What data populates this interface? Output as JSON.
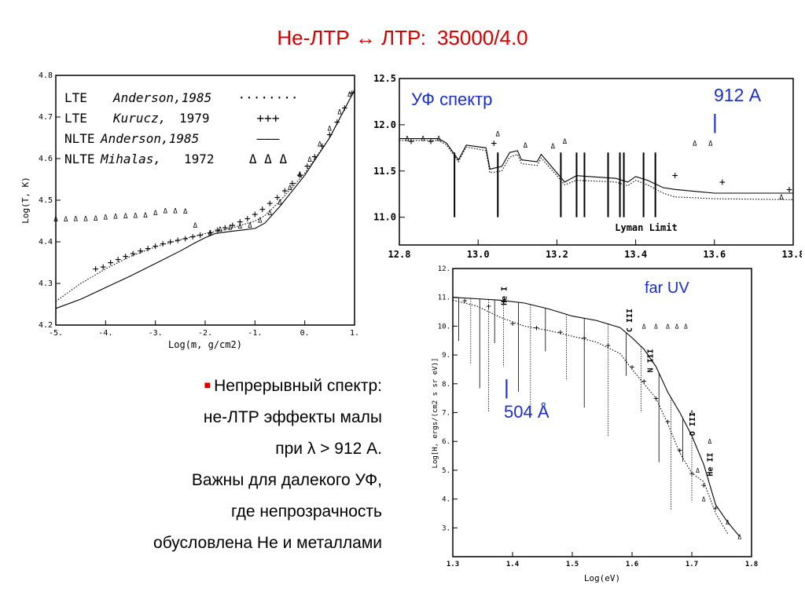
{
  "title": {
    "part1": "He-ЛТР",
    "arrow": "↔",
    "part2": "ЛТР:",
    "part3": "35000/4.0"
  },
  "bullet": {
    "lines": [
      "Непрерывный спектр:",
      "не-ЛТР эффекты малы",
      "при λ > 912 А.",
      "Важны для далекого УФ,",
      "где непрозрачность",
      "обусловлена He и металлами"
    ]
  },
  "colors": {
    "title": "#d40000",
    "annotation": "#1a2fcc",
    "bullet": "#d40000"
  },
  "chart_data": [
    {
      "type": "line",
      "xlabel": "Log(m, g/cm2)",
      "ylabel": "Log(T, K)",
      "xlim": [
        -5,
        1
      ],
      "ylim": [
        4.2,
        4.8
      ],
      "xticks": [
        "-5.",
        "-4.",
        "-3.",
        "-2.",
        "-1.",
        "0.",
        "1."
      ],
      "yticks": [
        "4.2",
        "4.3",
        "4.4",
        "4.5",
        "4.6",
        "4.7",
        "4.8"
      ],
      "legend": [
        {
          "label": "LTE",
          "ref": "Anderson,1985",
          "year": "",
          "marker": "········"
        },
        {
          "label": "LTE",
          "ref": "Kurucz,",
          "year": "1979",
          "marker": "+++"
        },
        {
          "label": "NLTE",
          "ref": "Anderson,1985",
          "year": "",
          "marker": "———"
        },
        {
          "label": "NLTE",
          "ref": "Mihalas,",
          "year": "1972",
          "marker": "Δ Δ Δ"
        }
      ],
      "series": [
        {
          "style": "dotted",
          "x": [
            -5.0,
            -4.5,
            -4.0,
            -3.5,
            -3.0,
            -2.5,
            -2.2,
            -2.0,
            -1.5,
            -1.0,
            -0.8,
            -0.5,
            0.0,
            0.5,
            1.0
          ],
          "y": [
            4.257,
            4.3,
            4.335,
            4.365,
            4.388,
            4.405,
            4.414,
            4.42,
            4.432,
            4.45,
            4.463,
            4.498,
            4.565,
            4.65,
            4.765
          ]
        },
        {
          "style": "solid",
          "x": [
            -5.0,
            -4.5,
            -4.0,
            -3.5,
            -3.0,
            -2.5,
            -2.2,
            -2.0,
            -1.8,
            -1.5,
            -1.2,
            -1.0,
            -0.8,
            -0.5,
            0.0,
            0.5,
            1.0
          ],
          "y": [
            4.24,
            4.262,
            4.29,
            4.318,
            4.348,
            4.378,
            4.398,
            4.41,
            4.42,
            4.425,
            4.429,
            4.432,
            4.445,
            4.485,
            4.56,
            4.65,
            4.765
          ]
        },
        {
          "style": "plus",
          "x": [
            -4.2,
            -4.05,
            -3.9,
            -3.75,
            -3.6,
            -3.45,
            -3.3,
            -3.15,
            -3.0,
            -2.85,
            -2.7,
            -2.55,
            -2.4,
            -2.25,
            -2.1,
            -1.9,
            -1.75,
            -1.6,
            -1.45,
            -1.3,
            -1.15,
            -1.0,
            -0.85,
            -0.7,
            -0.55,
            -0.4,
            -0.25,
            -0.1,
            0.05,
            0.2,
            0.35,
            0.5,
            0.65,
            0.8,
            0.95
          ],
          "y": [
            4.335,
            4.34,
            4.35,
            4.358,
            4.365,
            4.372,
            4.378,
            4.384,
            4.39,
            4.395,
            4.4,
            4.404,
            4.408,
            4.412,
            4.416,
            4.422,
            4.428,
            4.434,
            4.44,
            4.448,
            4.456,
            4.466,
            4.478,
            4.492,
            4.507,
            4.523,
            4.541,
            4.56,
            4.582,
            4.605,
            4.63,
            4.658,
            4.688,
            4.722,
            4.758
          ]
        },
        {
          "style": "triangle",
          "x": [
            -5.0,
            -4.8,
            -4.6,
            -4.4,
            -4.2,
            -4.0,
            -3.8,
            -3.6,
            -3.4,
            -3.2,
            -3.0,
            -2.8,
            -2.6,
            -2.4,
            -2.2,
            -1.9,
            -1.7,
            -1.5,
            -1.3,
            -1.1,
            -0.9,
            -0.7,
            -0.5,
            -0.3,
            -0.1,
            0.1,
            0.3,
            0.5,
            0.7,
            0.9
          ],
          "y": [
            4.455,
            4.455,
            4.456,
            4.456,
            4.457,
            4.459,
            4.461,
            4.462,
            4.463,
            4.464,
            4.47,
            4.475,
            4.475,
            4.474,
            4.44,
            4.422,
            4.43,
            4.435,
            4.438,
            4.44,
            4.452,
            4.47,
            4.495,
            4.53,
            4.562,
            4.598,
            4.635,
            4.673,
            4.712,
            4.755
          ]
        }
      ]
    },
    {
      "type": "line",
      "title": "УФ спектр",
      "annotation": "912 А",
      "annotation_bar": "|",
      "bottom_label": "Lyman Limit",
      "xlim": [
        12.8,
        13.8
      ],
      "ylim": [
        10.7,
        12.5
      ],
      "xticks": [
        "12.8",
        "13.0",
        "13.2",
        "13.4",
        "13.6",
        "13.8"
      ],
      "yticks": [
        "11.0",
        "11.5",
        "12.0",
        "12.5"
      ],
      "series": [
        {
          "style": "solid",
          "x": [
            12.8,
            12.9,
            12.92,
            12.95,
            12.97,
            13.02,
            13.03,
            13.06,
            13.08,
            13.1,
            13.11,
            13.15,
            13.16,
            13.2,
            13.22,
            13.25,
            13.35,
            13.38,
            13.4,
            13.43,
            13.47,
            13.5,
            13.55,
            13.6,
            13.8
          ],
          "y": [
            11.85,
            11.85,
            11.8,
            11.62,
            11.78,
            11.75,
            11.52,
            11.55,
            11.7,
            11.72,
            11.62,
            11.6,
            11.68,
            11.48,
            11.38,
            11.45,
            11.42,
            11.38,
            11.44,
            11.4,
            11.32,
            11.3,
            11.28,
            11.26,
            11.26
          ]
        },
        {
          "style": "dotted",
          "x": [
            12.8,
            12.9,
            12.92,
            12.95,
            12.97,
            13.02,
            13.03,
            13.06,
            13.08,
            13.1,
            13.11,
            13.15,
            13.16,
            13.2,
            13.22,
            13.25,
            13.35,
            13.38,
            13.4,
            13.43,
            13.47,
            13.5,
            13.55,
            13.6,
            13.8
          ],
          "y": [
            11.83,
            11.83,
            11.78,
            11.6,
            11.76,
            11.72,
            11.48,
            11.5,
            11.65,
            11.68,
            11.58,
            11.56,
            11.64,
            11.45,
            11.35,
            11.4,
            11.38,
            11.34,
            11.4,
            11.35,
            11.26,
            11.22,
            11.21,
            11.2,
            11.19
          ]
        },
        {
          "style": "plus",
          "x": [
            12.83,
            12.88,
            13.04,
            13.5,
            13.62,
            13.79
          ],
          "y": [
            11.82,
            11.82,
            11.8,
            11.45,
            11.38,
            11.3
          ]
        },
        {
          "style": "triangle",
          "x": [
            12.82,
            12.86,
            12.9,
            13.05,
            13.12,
            13.19,
            13.22,
            13.55,
            13.59,
            13.77
          ],
          "y": [
            11.85,
            11.85,
            11.85,
            11.9,
            11.78,
            11.77,
            11.82,
            11.8,
            11.8,
            11.22
          ]
        }
      ],
      "absorption_lines": [
        12.94,
        13.05,
        13.21,
        13.25,
        13.27,
        13.33,
        13.36,
        13.37,
        13.42,
        13.45
      ]
    },
    {
      "type": "line",
      "title": "far UV",
      "annotation": "504 Å",
      "annotation_bar": "|",
      "xlabel": "Log(eV)",
      "ylabel": "Log[H, ergs/(cm2 s sr eV)]",
      "xlim": [
        1.3,
        1.8
      ],
      "ylim": [
        2,
        12
      ],
      "xticks": [
        "1.3",
        "1.4",
        "1.5",
        "1.6",
        "1.7",
        "1.8"
      ],
      "yticks": [
        "3.",
        "4.",
        "5.",
        "6.",
        "7.",
        "8.",
        "9.",
        "10.",
        "11.",
        "12."
      ],
      "line_labels": [
        {
          "text": "He I",
          "x": 1.39,
          "y": 11.05
        },
        {
          "text": "C III",
          "x": 1.6,
          "y": 10.2
        },
        {
          "text": "N III",
          "x": 1.635,
          "y": 8.8
        },
        {
          "text": "O III",
          "x": 1.705,
          "y": 6.6
        },
        {
          "text": "He II",
          "x": 1.735,
          "y": 5.2
        }
      ],
      "series": [
        {
          "style": "solid",
          "x": [
            1.3,
            1.34,
            1.38,
            1.42,
            1.46,
            1.5,
            1.54,
            1.58,
            1.6,
            1.62,
            1.64,
            1.66,
            1.68,
            1.7,
            1.72,
            1.74,
            1.76,
            1.78
          ],
          "y": [
            11.0,
            10.95,
            10.9,
            10.8,
            10.6,
            10.35,
            10.2,
            9.95,
            9.6,
            9.2,
            8.6,
            7.7,
            7.0,
            6.2,
            5.2,
            3.8,
            3.2,
            2.7
          ]
        },
        {
          "style": "dotted",
          "x": [
            1.3,
            1.34,
            1.38,
            1.42,
            1.46,
            1.5,
            1.54,
            1.58,
            1.6,
            1.62,
            1.64,
            1.66,
            1.68,
            1.7,
            1.72,
            1.74,
            1.76
          ],
          "y": [
            10.9,
            10.7,
            10.3,
            10.0,
            9.85,
            9.65,
            9.45,
            9.05,
            8.5,
            8.0,
            7.5,
            6.6,
            5.6,
            4.9,
            4.6,
            3.5,
            2.8
          ]
        },
        {
          "style": "plus",
          "x": [
            1.32,
            1.36,
            1.4,
            1.44,
            1.48,
            1.52,
            1.56,
            1.6,
            1.62,
            1.64,
            1.66,
            1.68,
            1.7,
            1.72,
            1.74
          ],
          "y": [
            10.9,
            10.7,
            10.1,
            9.95,
            9.8,
            9.6,
            9.35,
            8.6,
            8.1,
            7.5,
            6.7,
            5.7,
            4.9,
            4.5,
            3.7
          ]
        },
        {
          "style": "triangle",
          "x": [
            1.62,
            1.64,
            1.66,
            1.675,
            1.69,
            1.7,
            1.71,
            1.72,
            1.73,
            1.76,
            1.78
          ],
          "y": [
            10.0,
            10.0,
            10.0,
            10.0,
            10.0,
            7.0,
            5.0,
            4.0,
            6.0,
            3.2,
            2.7
          ]
        }
      ],
      "absorption_lines": [
        1.31,
        1.33,
        1.345,
        1.36,
        1.37,
        1.385,
        1.41,
        1.43,
        1.455,
        1.49,
        1.52,
        1.56,
        1.59,
        1.615,
        1.645,
        1.665,
        1.685,
        1.7
      ]
    }
  ]
}
